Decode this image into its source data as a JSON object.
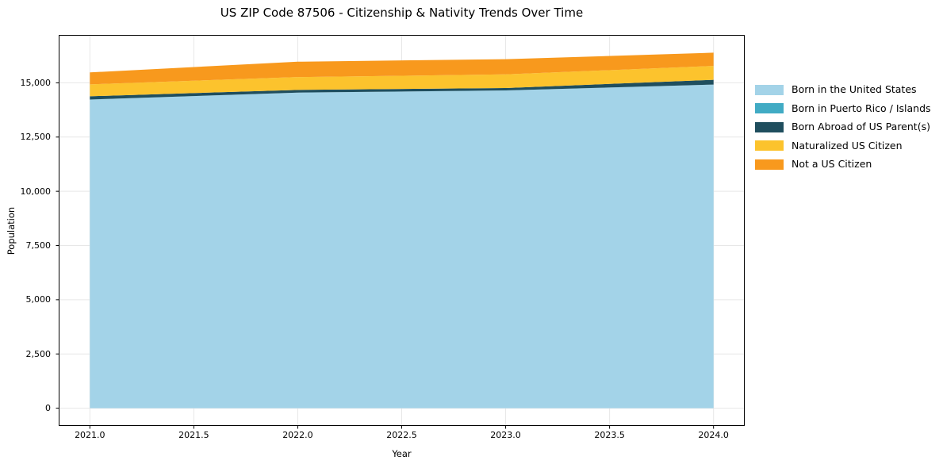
{
  "chart_data": {
    "type": "area",
    "stacked": true,
    "title": "US ZIP Code 87506 - Citizenship & Nativity Trends Over Time",
    "xlabel": "Year",
    "ylabel": "Population",
    "x": [
      2021,
      2022,
      2023,
      2024
    ],
    "series": [
      {
        "name": "Born in the United States",
        "color": "#a3d3e8",
        "values": [
          14230,
          14550,
          14650,
          14920
        ]
      },
      {
        "name": "Born in Puerto Rico / Islands",
        "color": "#41abc4",
        "values": [
          0,
          0,
          0,
          0
        ]
      },
      {
        "name": "Born Abroad of US Parent(s)",
        "color": "#1f4e5e",
        "values": [
          150,
          125,
          110,
          220
        ]
      },
      {
        "name": "Naturalized US Citizen",
        "color": "#fcc32d",
        "values": [
          550,
          590,
          630,
          640
        ]
      },
      {
        "name": "Not a US Citizen",
        "color": "#f8991d",
        "values": [
          550,
          710,
          700,
          610
        ]
      }
    ],
    "stack_totals": [
      15480,
      15975,
      16090,
      16390
    ],
    "xlim": [
      2020.85,
      2024.15
    ],
    "ylim": [
      -820,
      17210
    ],
    "xtick_values": [
      2021,
      2021.5,
      2022,
      2022.5,
      2023,
      2023.5,
      2024
    ],
    "xtick_labels": [
      "2021.0",
      "2021.5",
      "2022.0",
      "2022.5",
      "2023.0",
      "2023.5",
      "2024.0"
    ],
    "ytick_values": [
      0,
      2500,
      5000,
      7500,
      10000,
      12500,
      15000
    ],
    "ytick_labels": [
      "0",
      "2,500",
      "5,000",
      "7,500",
      "10,000",
      "12,500",
      "15,000"
    ],
    "grid": true,
    "legend_position": "right-outside"
  }
}
